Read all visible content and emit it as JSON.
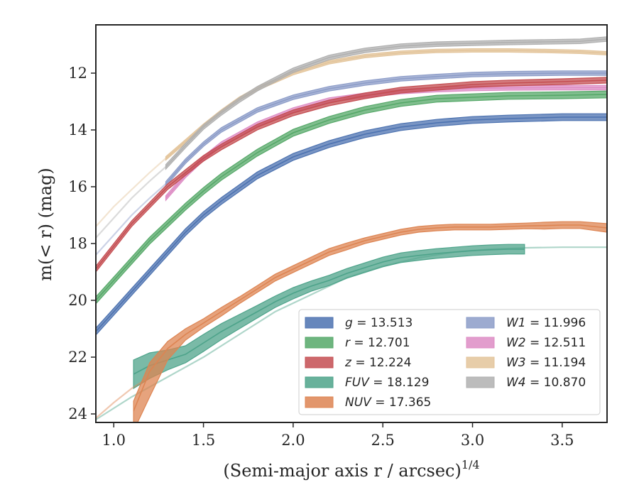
{
  "chart_data": {
    "type": "line",
    "xlabel_text": "(Semi-major axis r / arcsec)",
    "xlabel_power": "1/4",
    "ylabel_text": "m(< r) (mag)",
    "xlim": [
      0.9,
      3.75
    ],
    "ylim": [
      24.3,
      10.3
    ],
    "y_inverted": true,
    "grid": false,
    "legend_position": "lower-right",
    "x_ticks": [
      1.0,
      1.5,
      2.0,
      2.5,
      3.0,
      3.5
    ],
    "x_tick_labels": [
      "1.0",
      "1.5",
      "2.0",
      "2.5",
      "3.0",
      "3.5"
    ],
    "y_ticks": [
      12,
      14,
      16,
      18,
      20,
      22,
      24
    ],
    "y_tick_labels": [
      "12",
      "14",
      "16",
      "18",
      "20",
      "22",
      "24"
    ],
    "series": [
      {
        "name": "g = 13.513",
        "var": "g",
        "value": "13.513",
        "color": "#4c72b0",
        "x": [
          0.9,
          1.0,
          1.1,
          1.2,
          1.3,
          1.4,
          1.5,
          1.6,
          1.8,
          2.0,
          2.2,
          2.4,
          2.6,
          2.8,
          3.0,
          3.2,
          3.5,
          3.75
        ],
        "y": [
          21.1,
          20.4,
          19.7,
          19.0,
          18.3,
          17.6,
          17.0,
          16.5,
          15.6,
          14.95,
          14.5,
          14.15,
          13.9,
          13.75,
          13.65,
          13.6,
          13.55,
          13.55
        ],
        "band": 0.12
      },
      {
        "name": "r = 12.701",
        "var": "r",
        "value": "12.701",
        "color": "#55a868",
        "x": [
          0.9,
          1.0,
          1.1,
          1.2,
          1.3,
          1.4,
          1.5,
          1.6,
          1.8,
          2.0,
          2.2,
          2.4,
          2.6,
          2.8,
          3.0,
          3.2,
          3.5,
          3.75
        ],
        "y": [
          20.0,
          19.3,
          18.6,
          17.9,
          17.3,
          16.7,
          16.15,
          15.65,
          14.8,
          14.1,
          13.65,
          13.3,
          13.05,
          12.9,
          12.85,
          12.8,
          12.78,
          12.75
        ],
        "band": 0.12
      },
      {
        "name": "z = 12.224",
        "var": "z",
        "value": "12.224",
        "color": "#c44e52",
        "x": [
          0.9,
          1.0,
          1.1,
          1.2,
          1.3,
          1.4,
          1.5,
          1.6,
          1.8,
          2.0,
          2.2,
          2.4,
          2.6,
          2.8,
          3.0,
          3.2,
          3.5,
          3.75
        ],
        "y": [
          18.9,
          18.1,
          17.3,
          16.65,
          16.0,
          15.5,
          15.0,
          14.6,
          13.9,
          13.4,
          13.05,
          12.8,
          12.6,
          12.5,
          12.4,
          12.35,
          12.3,
          12.25
        ],
        "band": 0.1
      },
      {
        "name": "FUV = 18.129",
        "var": "FUV",
        "value": "18.129",
        "color": "#4da38a",
        "x": [
          1.11,
          1.2,
          1.3,
          1.4,
          1.5,
          1.6,
          1.7,
          1.8,
          1.9,
          2.0,
          2.1,
          2.2,
          2.3,
          2.4,
          2.5,
          2.6,
          2.7,
          2.8,
          2.9,
          3.0,
          3.1,
          3.2,
          3.29
        ],
        "y": [
          22.6,
          22.3,
          22.1,
          21.9,
          21.5,
          21.1,
          20.75,
          20.4,
          20.05,
          19.75,
          19.5,
          19.3,
          19.05,
          18.85,
          18.65,
          18.5,
          18.42,
          18.35,
          18.3,
          18.25,
          18.22,
          18.2,
          18.2
        ],
        "band_lo": [
          0.5,
          0.45,
          0.35,
          0.3,
          0.3,
          0.28,
          0.25,
          0.22,
          0.2,
          0.2,
          0.18,
          0.18,
          0.17,
          0.17,
          0.17,
          0.17,
          0.17,
          0.17,
          0.17,
          0.17,
          0.17,
          0.17,
          0.17
        ],
        "band_hi": [
          0.5,
          0.45,
          0.35,
          0.3,
          0.3,
          0.28,
          0.25,
          0.22,
          0.2,
          0.2,
          0.18,
          0.18,
          0.17,
          0.17,
          0.17,
          0.17,
          0.17,
          0.17,
          0.17,
          0.17,
          0.17,
          0.17,
          0.17
        ],
        "faint_x": [
          0.9,
          1.1,
          1.3,
          1.5,
          1.7,
          1.9,
          2.1,
          2.3,
          2.5,
          2.7,
          2.9,
          3.1,
          3.3,
          3.5,
          3.75
        ],
        "faint_y": [
          24.2,
          23.4,
          22.7,
          22.0,
          21.2,
          20.4,
          19.8,
          19.2,
          18.8,
          18.5,
          18.3,
          18.2,
          18.15,
          18.13,
          18.13
        ]
      },
      {
        "name": "NUV = 17.365",
        "var": "NUV",
        "value": "17.365",
        "color": "#dd8452",
        "x": [
          1.11,
          1.2,
          1.3,
          1.4,
          1.5,
          1.6,
          1.7,
          1.8,
          1.9,
          2.0,
          2.1,
          2.2,
          2.3,
          2.4,
          2.5,
          2.6,
          2.7,
          2.8,
          2.9,
          3.0,
          3.1,
          3.2,
          3.3,
          3.4,
          3.5,
          3.6,
          3.75
        ],
        "y": [
          23.9,
          22.5,
          21.7,
          21.2,
          20.8,
          20.4,
          20.0,
          19.6,
          19.2,
          18.9,
          18.6,
          18.3,
          18.1,
          17.9,
          17.75,
          17.6,
          17.5,
          17.45,
          17.42,
          17.42,
          17.42,
          17.4,
          17.38,
          17.37,
          17.35,
          17.35,
          17.45
        ],
        "band_lo": [
          0.35,
          0.3,
          0.25,
          0.2,
          0.15,
          0.15,
          0.12,
          0.12,
          0.12,
          0.12,
          0.12,
          0.12,
          0.12,
          0.1,
          0.1,
          0.1,
          0.1,
          0.1,
          0.1,
          0.1,
          0.1,
          0.1,
          0.1,
          0.12,
          0.12,
          0.12,
          0.15
        ],
        "band_hi": [
          0.7,
          0.9,
          0.4,
          0.2,
          0.15,
          0.15,
          0.12,
          0.12,
          0.12,
          0.12,
          0.12,
          0.12,
          0.12,
          0.1,
          0.1,
          0.1,
          0.1,
          0.1,
          0.1,
          0.1,
          0.1,
          0.1,
          0.1,
          0.12,
          0.12,
          0.12,
          0.15
        ],
        "faint_x": [
          0.9,
          1.0,
          1.1,
          1.2
        ],
        "faint_y": [
          24.15,
          23.6,
          23.1,
          22.7
        ]
      },
      {
        "name": "W1 = 11.996",
        "var": "W1",
        "value": "11.996",
        "color": "#8c9cc8",
        "x": [
          1.29,
          1.4,
          1.5,
          1.6,
          1.8,
          2.0,
          2.2,
          2.4,
          2.6,
          2.8,
          3.0,
          3.2,
          3.5,
          3.75
        ],
        "y": [
          15.9,
          15.1,
          14.5,
          14.0,
          13.3,
          12.85,
          12.55,
          12.35,
          12.2,
          12.12,
          12.05,
          12.02,
          12.0,
          12.0
        ],
        "band": 0.08,
        "faint_x": [
          0.9,
          1.0,
          1.1,
          1.2,
          1.29
        ],
        "faint_y": [
          18.4,
          17.7,
          17.0,
          16.4,
          15.9
        ]
      },
      {
        "name": "W2 = 12.511",
        "var": "W2",
        "value": "12.511",
        "color": "#dd8cc4",
        "x": [
          1.29,
          1.4,
          1.5,
          1.6,
          1.8,
          2.0,
          2.2,
          2.4,
          2.6,
          2.8,
          3.0,
          3.2,
          3.5,
          3.75
        ],
        "y": [
          16.4,
          15.6,
          15.0,
          14.5,
          13.8,
          13.3,
          12.95,
          12.78,
          12.65,
          12.58,
          12.54,
          12.52,
          12.51,
          12.51
        ],
        "band": 0.08
      },
      {
        "name": "W3 = 11.194",
        "var": "W3",
        "value": "11.194",
        "color": "#e3c49a",
        "x": [
          1.29,
          1.4,
          1.5,
          1.6,
          1.7,
          1.8,
          2.0,
          2.2,
          2.4,
          2.6,
          2.8,
          3.0,
          3.2,
          3.4,
          3.6,
          3.75
        ],
        "y": [
          15.0,
          14.4,
          13.85,
          13.35,
          12.9,
          12.55,
          12.0,
          11.62,
          11.4,
          11.28,
          11.22,
          11.2,
          11.2,
          11.22,
          11.25,
          11.3
        ],
        "band": 0.06,
        "faint_x": [
          0.9,
          1.0,
          1.1,
          1.2,
          1.29
        ],
        "faint_y": [
          17.4,
          16.7,
          16.1,
          15.5,
          15.0
        ]
      },
      {
        "name": "W4 = 10.870",
        "var": "W4",
        "value": "10.870",
        "color": "#b0b0b0",
        "x": [
          1.29,
          1.4,
          1.5,
          1.6,
          1.7,
          1.8,
          2.0,
          2.2,
          2.4,
          2.6,
          2.8,
          3.0,
          3.2,
          3.4,
          3.6,
          3.75
        ],
        "y": [
          15.3,
          14.55,
          13.9,
          13.4,
          12.95,
          12.55,
          11.9,
          11.45,
          11.2,
          11.05,
          10.98,
          10.95,
          10.92,
          10.9,
          10.88,
          10.8
        ],
        "band": 0.08,
        "faint_x": [
          0.9,
          1.0,
          1.1,
          1.2,
          1.29
        ],
        "faint_y": [
          17.8,
          17.1,
          16.4,
          15.8,
          15.3
        ]
      }
    ]
  }
}
